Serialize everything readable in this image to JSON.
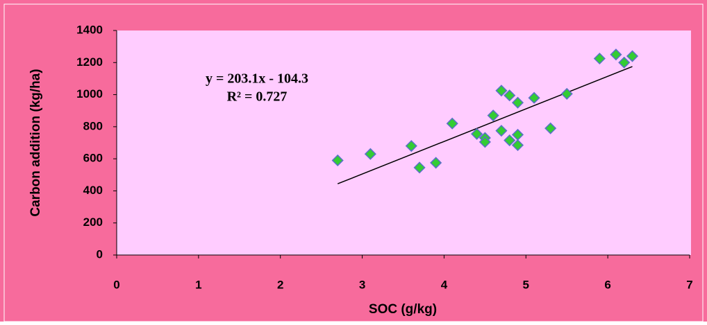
{
  "chart_data": {
    "type": "scatter",
    "x_label": "SOC (g/kg)",
    "y_label": "Carbon addition (kg/ha)",
    "annotations": [
      "y = 203.1x - 104.3",
      "R² = 0.727"
    ],
    "x": [
      2.7,
      3.1,
      3.6,
      3.7,
      3.9,
      4.1,
      4.4,
      4.5,
      4.5,
      4.6,
      4.7,
      4.7,
      4.8,
      4.8,
      4.9,
      4.9,
      4.9,
      5.1,
      5.3,
      5.5,
      5.9,
      6.1,
      6.2,
      6.3
    ],
    "values": [
      590,
      630,
      680,
      545,
      575,
      820,
      755,
      730,
      705,
      870,
      1025,
      775,
      995,
      715,
      950,
      750,
      685,
      980,
      790,
      1005,
      1225,
      1250,
      1200,
      1240
    ],
    "trendline": {
      "slope": 203.1,
      "intercept": -104.3
    },
    "color": "#33cc33",
    "edge_color": "#5a6fc8",
    "xlim": [
      0,
      7
    ],
    "xticks": [
      0,
      1,
      2,
      3,
      4,
      5,
      6,
      7
    ],
    "ylim": [
      0,
      1400
    ],
    "yticks": [
      0,
      200,
      400,
      600,
      800,
      1000,
      1200,
      1400
    ]
  }
}
